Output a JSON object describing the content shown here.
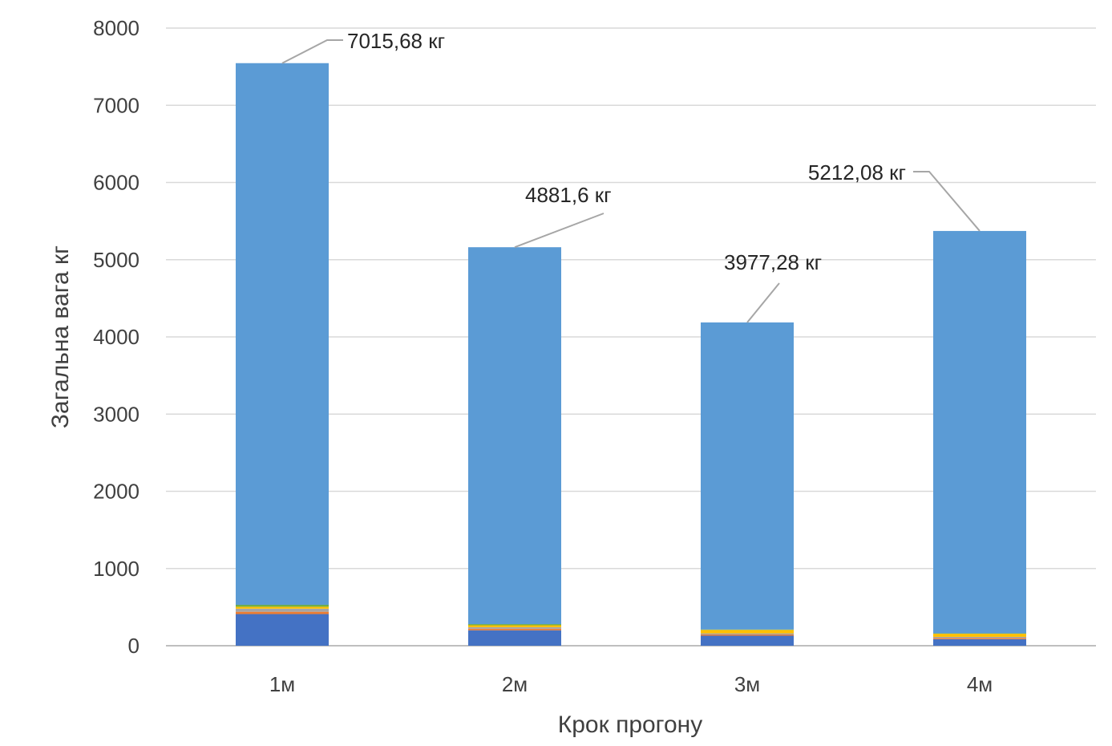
{
  "chart_data": {
    "type": "bar",
    "stacked": true,
    "categories": [
      "1м",
      "2м",
      "3м",
      "4м"
    ],
    "xlabel": "Крок прогону",
    "ylabel": "Загальна вага кг",
    "ylim": [
      0,
      8000
    ],
    "yticks": [
      0,
      1000,
      2000,
      3000,
      4000,
      5000,
      6000,
      7000,
      8000
    ],
    "grid": true,
    "legend": "none",
    "series": [
      {
        "color": "#4472C4",
        "values": [
          410,
          200,
          130,
          85
        ]
      },
      {
        "color": "#ED7D31",
        "values": [
          30,
          20,
          15,
          15
        ]
      },
      {
        "color": "#A5A5A5",
        "values": [
          40,
          20,
          15,
          15
        ]
      },
      {
        "color": "#FFC000",
        "values": [
          25,
          25,
          45,
          40
        ]
      },
      {
        "color": "#70AD47",
        "values": [
          25,
          15,
          5,
          5
        ]
      },
      {
        "color": "#5B9BD5",
        "values": [
          7015.68,
          4881.6,
          3977.28,
          5212.08
        ]
      }
    ],
    "data_labels": [
      "7015,68 кг",
      "4881,6 кг",
      "3977,28 кг",
      "5212,08 кг"
    ],
    "colors": {
      "grid": "#D9D9D9",
      "axis": "#BFBFBF",
      "leader": "#A6A6A6"
    }
  }
}
